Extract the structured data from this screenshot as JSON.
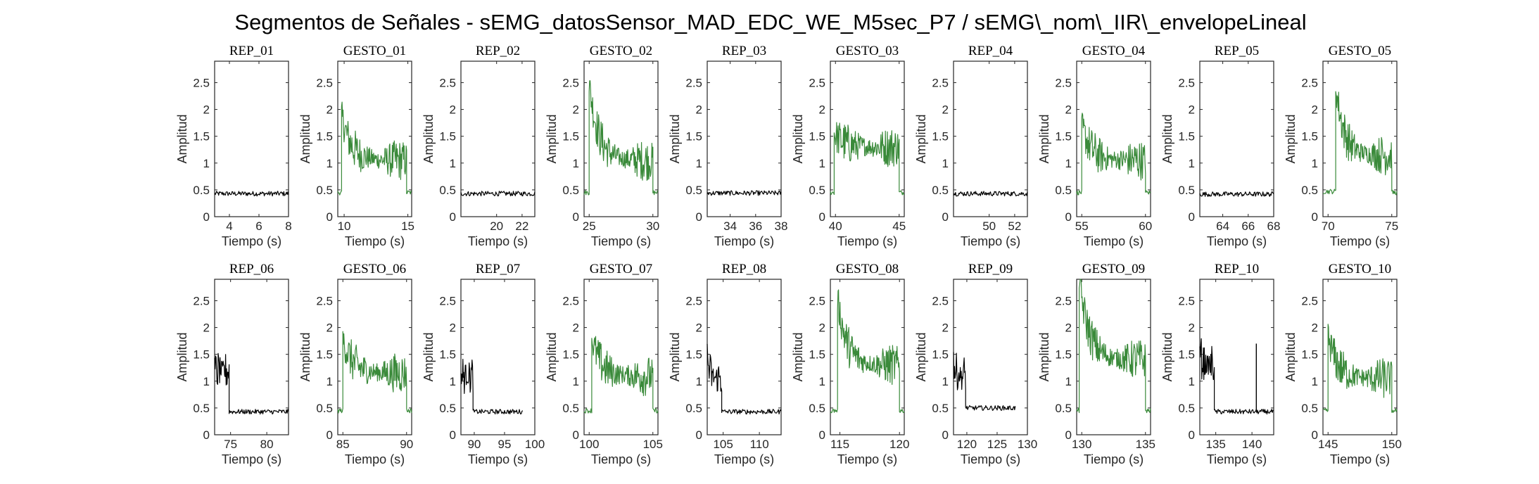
{
  "title": "Segmentos de Señales - sEMG_datosSensor_MAD_EDC_WE_M5sec_P7 / sEMG\\_nom\\_IIR\\_envelopeLineal",
  "colors": {
    "rest": "#000000",
    "gesture": "#3a8a3a",
    "axis": "#262626"
  },
  "chart_data": [
    {
      "type": "line",
      "title": "REP_01",
      "xlabel": "Tiempo (s)",
      "ylabel": "Amplitud",
      "xlim": [
        3,
        8
      ],
      "ylim": [
        0,
        2.9
      ],
      "xticks": [
        "4",
        "6",
        "8"
      ],
      "yticks": [
        "0",
        "0.5",
        "1",
        "1.5",
        "2",
        "2.5"
      ],
      "series": [
        {
          "kind": "rest",
          "segments": [
            {
              "x0": 3,
              "x1": 8,
              "level": 0.43,
              "spike": 0
            }
          ]
        }
      ]
    },
    {
      "type": "line",
      "title": "GESTO_01",
      "xlabel": "Tiempo (s)",
      "ylabel": "Amplitud",
      "xlim": [
        9.5,
        15.3
      ],
      "ylim": [
        0,
        2.9
      ],
      "xticks": [
        "10",
        "15"
      ],
      "yticks": [
        "0",
        "0.5",
        "1",
        "1.5",
        "2",
        "2.5"
      ],
      "series": [
        {
          "kind": "gesture",
          "segments": [
            {
              "x0": 9.5,
              "x1": 9.8,
              "level": 0.45,
              "spike": 0
            },
            {
              "x0": 9.8,
              "x1": 14.9,
              "level": 1.05,
              "spike": 1.9
            },
            {
              "x0": 14.9,
              "x1": 15.3,
              "level": 0.45,
              "spike": 0
            }
          ]
        }
      ]
    },
    {
      "type": "line",
      "title": "REP_02",
      "xlabel": "Tiempo (s)",
      "ylabel": "Amplitud",
      "xlim": [
        17.2,
        23
      ],
      "ylim": [
        0,
        2.9
      ],
      "xticks": [
        "20",
        "22"
      ],
      "yticks": [
        "0",
        "0.5",
        "1",
        "1.5",
        "2",
        "2.5"
      ],
      "series": [
        {
          "kind": "rest",
          "segments": [
            {
              "x0": 17.2,
              "x1": 23,
              "level": 0.43,
              "spike": 0
            }
          ]
        }
      ]
    },
    {
      "type": "line",
      "title": "GESTO_02",
      "xlabel": "Tiempo (s)",
      "ylabel": "Amplitud",
      "xlim": [
        24.6,
        30.4
      ],
      "ylim": [
        0,
        2.9
      ],
      "xticks": [
        "25",
        "30"
      ],
      "yticks": [
        "0",
        "0.5",
        "1",
        "1.5",
        "2",
        "2.5"
      ],
      "series": [
        {
          "kind": "gesture",
          "segments": [
            {
              "x0": 24.6,
              "x1": 25.0,
              "level": 0.45,
              "spike": 0
            },
            {
              "x0": 25.0,
              "x1": 30.0,
              "level": 1.05,
              "spike": 2.5
            },
            {
              "x0": 30.0,
              "x1": 30.4,
              "level": 0.45,
              "spike": 0
            }
          ]
        }
      ]
    },
    {
      "type": "line",
      "title": "REP_03",
      "xlabel": "Tiempo (s)",
      "ylabel": "Amplitud",
      "xlim": [
        32.2,
        38
      ],
      "ylim": [
        0,
        2.9
      ],
      "xticks": [
        "34",
        "36",
        "38"
      ],
      "yticks": [
        "0",
        "0.5",
        "1",
        "1.5",
        "2",
        "2.5"
      ],
      "series": [
        {
          "kind": "rest",
          "segments": [
            {
              "x0": 32.2,
              "x1": 38,
              "level": 0.44,
              "spike": 0
            }
          ]
        }
      ]
    },
    {
      "type": "line",
      "title": "GESTO_03",
      "xlabel": "Tiempo (s)",
      "ylabel": "Amplitud",
      "xlim": [
        39.6,
        45.4
      ],
      "ylim": [
        0,
        2.9
      ],
      "xticks": [
        "40",
        "45"
      ],
      "yticks": [
        "0",
        "0.5",
        "1",
        "1.5",
        "2",
        "2.5"
      ],
      "series": [
        {
          "kind": "gesture",
          "segments": [
            {
              "x0": 39.6,
              "x1": 39.9,
              "level": 0.45,
              "spike": 0
            },
            {
              "x0": 39.9,
              "x1": 45.0,
              "level": 1.3,
              "spike": 1.55
            },
            {
              "x0": 45.0,
              "x1": 45.4,
              "level": 0.45,
              "spike": 0
            }
          ]
        }
      ]
    },
    {
      "type": "line",
      "title": "REP_04",
      "xlabel": "Tiempo (s)",
      "ylabel": "Amplitud",
      "xlim": [
        47.2,
        53
      ],
      "ylim": [
        0,
        2.9
      ],
      "xticks": [
        "50",
        "52"
      ],
      "yticks": [
        "0",
        "0.5",
        "1",
        "1.5",
        "2",
        "2.5"
      ],
      "series": [
        {
          "kind": "rest",
          "segments": [
            {
              "x0": 47.2,
              "x1": 53,
              "level": 0.43,
              "spike": 0
            }
          ]
        }
      ]
    },
    {
      "type": "line",
      "title": "GESTO_04",
      "xlabel": "Tiempo (s)",
      "ylabel": "Amplitud",
      "xlim": [
        54.6,
        60.4
      ],
      "ylim": [
        0,
        2.9
      ],
      "xticks": [
        "55",
        "60"
      ],
      "yticks": [
        "0",
        "0.5",
        "1",
        "1.5",
        "2",
        "2.5"
      ],
      "series": [
        {
          "kind": "gesture",
          "segments": [
            {
              "x0": 54.6,
              "x1": 55.0,
              "level": 0.45,
              "spike": 0
            },
            {
              "x0": 55.0,
              "x1": 60.0,
              "level": 1.05,
              "spike": 1.7
            },
            {
              "x0": 60.0,
              "x1": 60.4,
              "level": 0.45,
              "spike": 0
            }
          ]
        }
      ]
    },
    {
      "type": "line",
      "title": "REP_05",
      "xlabel": "Tiempo (s)",
      "ylabel": "Amplitud",
      "xlim": [
        62.2,
        68
      ],
      "ylim": [
        0,
        2.9
      ],
      "xticks": [
        "64",
        "66",
        "68"
      ],
      "yticks": [
        "0",
        "0.5",
        "1",
        "1.5",
        "2",
        "2.5"
      ],
      "series": [
        {
          "kind": "rest",
          "segments": [
            {
              "x0": 62.2,
              "x1": 68,
              "level": 0.42,
              "spike": 0
            }
          ]
        }
      ]
    },
    {
      "type": "line",
      "title": "GESTO_05",
      "xlabel": "Tiempo (s)",
      "ylabel": "Amplitud",
      "xlim": [
        69.6,
        75.4
      ],
      "ylim": [
        0,
        2.9
      ],
      "xticks": [
        "70",
        "75"
      ],
      "yticks": [
        "0",
        "0.5",
        "1",
        "1.5",
        "2",
        "2.5"
      ],
      "series": [
        {
          "kind": "gesture",
          "segments": [
            {
              "x0": 69.6,
              "x1": 70.6,
              "level": 0.47,
              "spike": 0
            },
            {
              "x0": 70.6,
              "x1": 75.0,
              "level": 1.15,
              "spike": 2.45
            },
            {
              "x0": 75.0,
              "x1": 75.4,
              "level": 0.45,
              "spike": 0
            }
          ]
        }
      ]
    },
    {
      "type": "line",
      "title": "REP_06",
      "xlabel": "Tiempo (s)",
      "ylabel": "Amplitud",
      "xlim": [
        72.8,
        83
      ],
      "ylim": [
        0,
        2.9
      ],
      "xticks": [
        "75",
        "80"
      ],
      "yticks": [
        "0",
        "0.5",
        "1",
        "1.5",
        "2",
        "2.5"
      ],
      "series": [
        {
          "kind": "rest",
          "segments": [
            {
              "x0": 72.8,
              "x1": 74.8,
              "level": 1.2,
              "spike": 0
            },
            {
              "x0": 74.8,
              "x1": 83,
              "level": 0.43,
              "spike": 0
            }
          ]
        }
      ]
    },
    {
      "type": "line",
      "title": "GESTO_06",
      "xlabel": "Tiempo (s)",
      "ylabel": "Amplitud",
      "xlim": [
        84.6,
        90.4
      ],
      "ylim": [
        0,
        2.9
      ],
      "xticks": [
        "85",
        "90"
      ],
      "yticks": [
        "0",
        "0.5",
        "1",
        "1.5",
        "2",
        "2.5"
      ],
      "series": [
        {
          "kind": "gesture",
          "segments": [
            {
              "x0": 84.6,
              "x1": 85.0,
              "level": 0.45,
              "spike": 0
            },
            {
              "x0": 85.0,
              "x1": 90.0,
              "level": 1.15,
              "spike": 1.8
            },
            {
              "x0": 90.0,
              "x1": 90.4,
              "level": 0.45,
              "spike": 0
            }
          ]
        }
      ]
    },
    {
      "type": "line",
      "title": "REP_07",
      "xlabel": "Tiempo (s)",
      "ylabel": "Amplitud",
      "xlim": [
        87.8,
        100
      ],
      "ylim": [
        0,
        2.9
      ],
      "xticks": [
        "90",
        "95",
        "100"
      ],
      "yticks": [
        "0",
        "0.5",
        "1",
        "1.5",
        "2",
        "2.5"
      ],
      "series": [
        {
          "kind": "rest",
          "segments": [
            {
              "x0": 87.8,
              "x1": 89.8,
              "level": 1.1,
              "spike": 0
            },
            {
              "x0": 89.8,
              "x1": 98,
              "level": 0.43,
              "spike": 0
            }
          ]
        }
      ]
    },
    {
      "type": "line",
      "title": "GESTO_07",
      "xlabel": "Tiempo (s)",
      "ylabel": "Amplitud",
      "xlim": [
        99.6,
        105.4
      ],
      "ylim": [
        0,
        2.9
      ],
      "xticks": [
        "100",
        "105"
      ],
      "yticks": [
        "0",
        "0.5",
        "1",
        "1.5",
        "2",
        "2.5"
      ],
      "series": [
        {
          "kind": "gesture",
          "segments": [
            {
              "x0": 99.6,
              "x1": 100.2,
              "level": 0.45,
              "spike": 0
            },
            {
              "x0": 100.2,
              "x1": 105.0,
              "level": 1.1,
              "spike": 1.8
            },
            {
              "x0": 105.0,
              "x1": 105.4,
              "level": 0.45,
              "spike": 0
            }
          ]
        }
      ]
    },
    {
      "type": "line",
      "title": "REP_08",
      "xlabel": "Tiempo (s)",
      "ylabel": "Amplitud",
      "xlim": [
        102.8,
        113
      ],
      "ylim": [
        0,
        2.9
      ],
      "xticks": [
        "105",
        "110"
      ],
      "yticks": [
        "0",
        "0.5",
        "1",
        "1.5",
        "2",
        "2.5"
      ],
      "series": [
        {
          "kind": "rest",
          "segments": [
            {
              "x0": 102.8,
              "x1": 104.8,
              "level": 1.05,
              "spike": 1.5
            },
            {
              "x0": 104.8,
              "x1": 113,
              "level": 0.43,
              "spike": 0
            }
          ]
        }
      ]
    },
    {
      "type": "line",
      "title": "GESTO_08",
      "xlabel": "Tiempo (s)",
      "ylabel": "Amplitud",
      "xlim": [
        114.2,
        120.4
      ],
      "ylim": [
        0,
        2.9
      ],
      "xticks": [
        "115",
        "120"
      ],
      "yticks": [
        "0",
        "0.5",
        "1",
        "1.5",
        "2",
        "2.5"
      ],
      "series": [
        {
          "kind": "gesture",
          "segments": [
            {
              "x0": 114.2,
              "x1": 114.8,
              "level": 0.45,
              "spike": 0
            },
            {
              "x0": 114.8,
              "x1": 120.0,
              "level": 1.3,
              "spike": 2.55
            },
            {
              "x0": 120.0,
              "x1": 120.4,
              "level": 0.45,
              "spike": 0
            }
          ]
        }
      ]
    },
    {
      "type": "line",
      "title": "REP_09",
      "xlabel": "Tiempo (s)",
      "ylabel": "Amplitud",
      "xlim": [
        117.8,
        130
      ],
      "ylim": [
        0,
        2.9
      ],
      "xticks": [
        "120",
        "125",
        "130"
      ],
      "yticks": [
        "0",
        "0.5",
        "1",
        "1.5",
        "2",
        "2.5"
      ],
      "series": [
        {
          "kind": "rest",
          "segments": [
            {
              "x0": 117.8,
              "x1": 119.8,
              "level": 1.1,
              "spike": 1.4
            },
            {
              "x0": 119.8,
              "x1": 128,
              "level": 0.5,
              "spike": 0
            }
          ]
        }
      ]
    },
    {
      "type": "line",
      "title": "GESTO_09",
      "xlabel": "Tiempo (s)",
      "ylabel": "Amplitud",
      "xlim": [
        129.6,
        135.4
      ],
      "ylim": [
        0,
        2.9
      ],
      "xticks": [
        "130",
        "135"
      ],
      "yticks": [
        "0",
        "0.5",
        "1",
        "1.5",
        "2",
        "2.5"
      ],
      "series": [
        {
          "kind": "gesture",
          "segments": [
            {
              "x0": 129.6,
              "x1": 129.8,
              "level": 0.45,
              "spike": 0
            },
            {
              "x0": 129.8,
              "x1": 135.0,
              "level": 1.4,
              "spike": 2.9
            },
            {
              "x0": 135.0,
              "x1": 135.4,
              "level": 0.45,
              "spike": 0
            }
          ]
        }
      ]
    },
    {
      "type": "line",
      "title": "REP_10",
      "xlabel": "Tiempo (s)",
      "ylabel": "Amplitud",
      "xlim": [
        132.8,
        143
      ],
      "ylim": [
        0,
        2.9
      ],
      "xticks": [
        "135",
        "140"
      ],
      "yticks": [
        "0",
        "0.5",
        "1",
        "1.5",
        "2",
        "2.5"
      ],
      "series": [
        {
          "kind": "rest",
          "segments": [
            {
              "x0": 132.8,
              "x1": 134.8,
              "level": 1.3,
              "spike": 1.6
            },
            {
              "x0": 134.8,
              "x1": 143,
              "level": 0.43,
              "spike": 0
            }
          ],
          "spikes": [
            {
              "x": 140.6,
              "y": 1.7
            }
          ]
        }
      ]
    },
    {
      "type": "line",
      "title": "GESTO_10",
      "xlabel": "Tiempo (s)",
      "ylabel": "Amplitud",
      "xlim": [
        144.6,
        150.4
      ],
      "ylim": [
        0,
        2.9
      ],
      "xticks": [
        "145",
        "150"
      ],
      "yticks": [
        "0",
        "0.5",
        "1",
        "1.5",
        "2",
        "2.5"
      ],
      "series": [
        {
          "kind": "gesture",
          "segments": [
            {
              "x0": 144.6,
              "x1": 145.0,
              "level": 0.45,
              "spike": 0
            },
            {
              "x0": 145.0,
              "x1": 150.0,
              "level": 1.05,
              "spike": 1.85
            },
            {
              "x0": 150.0,
              "x1": 150.4,
              "level": 0.45,
              "spike": 0
            }
          ]
        }
      ]
    }
  ]
}
